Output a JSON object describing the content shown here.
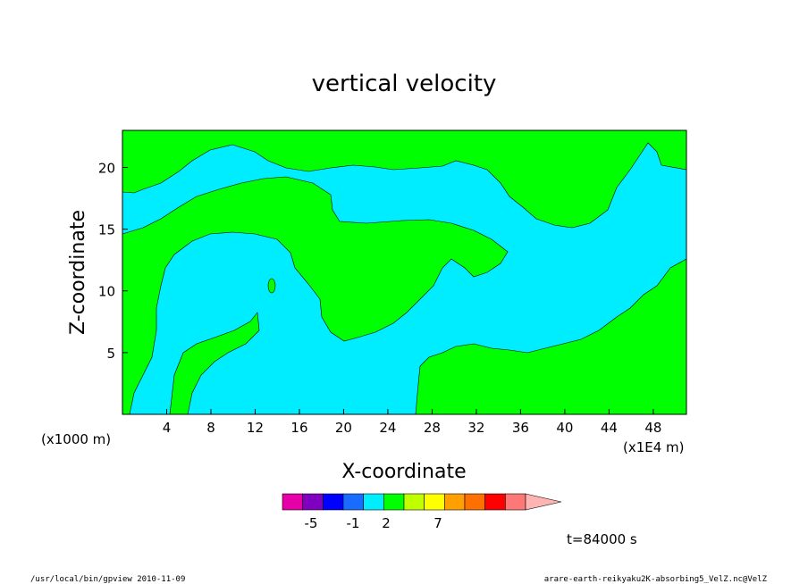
{
  "chart_data": {
    "type": "heatmap",
    "title": "vertical velocity",
    "xlabel": "X-coordinate",
    "ylabel": "Z-coordinate",
    "x_unit_left": "(x1000 m)",
    "x_unit_right": "(x1E4 m)",
    "xlim": [
      0,
      51
    ],
    "ylim": [
      0,
      23
    ],
    "xticks": [
      "4",
      "8",
      "12",
      "16",
      "20",
      "24",
      "28",
      "32",
      "36",
      "40",
      "44",
      "48"
    ],
    "yticks": [
      "5",
      "10",
      "15",
      "20"
    ],
    "grid": false,
    "fill_levels": {
      "background": "#00ecff",
      "foreground": "#00ff00",
      "note": "field shown mostly in two bands: cyan (slightly negative) and green (slightly positive)"
    },
    "colorbar": {
      "colors": [
        "#e600a8",
        "#8000c0",
        "#0000ff",
        "#1a6bff",
        "#00ecff",
        "#00ff00",
        "#c0ff00",
        "#ffff00",
        "#ffa000",
        "#ff7000",
        "#ff0000",
        "#ff7878",
        "#ffb4b4"
      ],
      "labels": [
        "-5",
        "-1",
        "2",
        "7"
      ]
    },
    "annotation_time": "t=84000 s"
  },
  "footer": {
    "left": "/usr/local/bin/gpview   2010-11-09",
    "right": "arare-earth-reikyaku2K-absorbing5_VelZ.nc@VelZ"
  }
}
